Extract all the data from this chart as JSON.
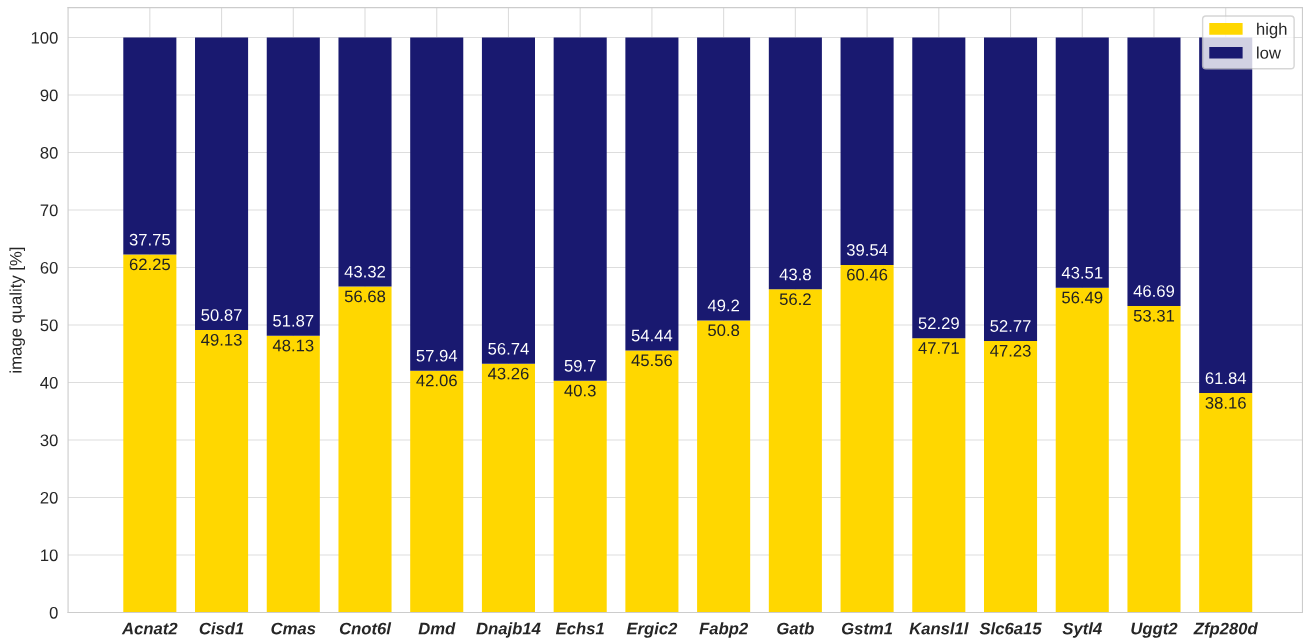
{
  "chart_data": {
    "type": "bar",
    "stacked": true,
    "ylabel": "image quality [%]",
    "categories": [
      "Acnat2",
      "Cisd1",
      "Cmas",
      "Cnot6l",
      "Dmd",
      "Dnajb14",
      "Echs1",
      "Ergic2",
      "Fabp2",
      "Gatb",
      "Gstm1",
      "Kansl1l",
      "Slc6a15",
      "Sytl4",
      "Uggt2",
      "Zfp280d"
    ],
    "series": [
      {
        "name": "high",
        "color": "#ffd700",
        "values": [
          62.25,
          49.13,
          48.13,
          56.68,
          42.06,
          43.26,
          40.3,
          45.56,
          50.8,
          56.2,
          60.46,
          47.71,
          47.23,
          56.49,
          53.31,
          38.16
        ]
      },
      {
        "name": "low",
        "color": "#191970",
        "values": [
          37.75,
          50.87,
          51.87,
          43.32,
          57.94,
          56.74,
          59.7,
          54.44,
          49.2,
          43.8,
          39.54,
          52.29,
          52.77,
          43.51,
          46.69,
          61.84
        ]
      }
    ],
    "ylim": [
      0,
      105.2
    ],
    "yticks": [
      0,
      10,
      20,
      30,
      40,
      50,
      60,
      70,
      80,
      90,
      100
    ],
    "data_labels": true,
    "grid": true,
    "legend": "top right"
  }
}
